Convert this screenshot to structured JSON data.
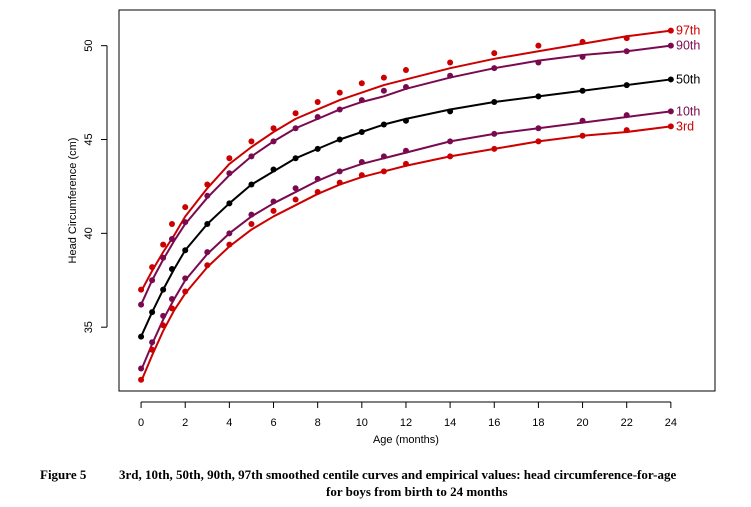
{
  "chart_data": {
    "type": "line",
    "title": "",
    "xlabel": "Age (months)",
    "ylabel": "Head Circumference (cm)",
    "xlim": [
      -1,
      26
    ],
    "ylim": [
      31.6,
      51.9
    ],
    "xticks": [
      0,
      2,
      4,
      6,
      8,
      10,
      12,
      14,
      16,
      18,
      20,
      22,
      24
    ],
    "yticks": [
      35,
      40,
      45,
      50
    ],
    "grid": false,
    "series": [
      {
        "name": "97th",
        "color": "#cc0000",
        "curve_x": [
          0,
          0.5,
          1,
          1.5,
          2,
          3,
          4,
          5,
          6,
          7,
          8,
          9,
          10,
          11,
          12,
          14,
          16,
          18,
          20,
          22,
          24
        ],
        "curve_y": [
          36.9,
          38.0,
          39.0,
          39.9,
          40.9,
          42.4,
          43.7,
          44.6,
          45.4,
          46.1,
          46.6,
          47.1,
          47.5,
          47.9,
          48.2,
          48.8,
          49.3,
          49.7,
          50.1,
          50.5,
          50.8
        ],
        "points_x": [
          0,
          0.5,
          1,
          1.4,
          2,
          3,
          4,
          5,
          6,
          7,
          8,
          9,
          10,
          11,
          12,
          14,
          16,
          18,
          20,
          22,
          24
        ],
        "points_y": [
          37.0,
          38.2,
          39.4,
          40.5,
          41.4,
          42.6,
          44.0,
          44.9,
          45.6,
          46.4,
          47.0,
          47.5,
          48.0,
          48.3,
          48.7,
          49.1,
          49.6,
          50.0,
          50.2,
          50.4,
          50.8
        ]
      },
      {
        "name": "90th",
        "color": "#7a0a50",
        "curve_x": [
          0,
          0.5,
          1,
          1.5,
          2,
          3,
          4,
          5,
          6,
          7,
          8,
          9,
          10,
          11,
          12,
          14,
          16,
          18,
          20,
          22,
          24
        ],
        "curve_y": [
          36.2,
          37.5,
          38.6,
          39.6,
          40.5,
          41.9,
          43.1,
          44.1,
          44.9,
          45.6,
          46.1,
          46.6,
          47.0,
          47.3,
          47.7,
          48.3,
          48.8,
          49.2,
          49.5,
          49.7,
          50.0
        ],
        "points_x": [
          0,
          0.5,
          1,
          1.4,
          2,
          3,
          4,
          5,
          6,
          7,
          8,
          9,
          10,
          11,
          12,
          14,
          16,
          18,
          20,
          22,
          24
        ],
        "points_y": [
          36.2,
          37.5,
          38.7,
          39.7,
          40.6,
          42.0,
          43.2,
          44.1,
          44.9,
          45.6,
          46.2,
          46.6,
          47.1,
          47.6,
          47.8,
          48.4,
          48.8,
          49.1,
          49.4,
          49.7,
          50.0
        ]
      },
      {
        "name": "50th",
        "color": "#000000",
        "curve_x": [
          0,
          0.5,
          1,
          1.5,
          2,
          3,
          4,
          5,
          6,
          7,
          8,
          9,
          10,
          11,
          12,
          14,
          16,
          18,
          20,
          22,
          24
        ],
        "curve_y": [
          34.5,
          35.8,
          37.0,
          38.1,
          39.1,
          40.5,
          41.6,
          42.6,
          43.3,
          44.0,
          44.5,
          45.0,
          45.4,
          45.8,
          46.1,
          46.6,
          47.0,
          47.3,
          47.6,
          47.9,
          48.2
        ],
        "points_x": [
          0,
          0.5,
          1,
          1.4,
          2,
          3,
          4,
          5,
          6,
          7,
          8,
          9,
          10,
          11,
          12,
          14,
          16,
          18,
          20,
          22,
          24
        ],
        "points_y": [
          34.5,
          35.8,
          37.0,
          38.1,
          39.1,
          40.5,
          41.6,
          42.6,
          43.4,
          44.0,
          44.5,
          45.0,
          45.4,
          45.8,
          46.0,
          46.5,
          47.0,
          47.3,
          47.6,
          47.9,
          48.2
        ]
      },
      {
        "name": "10th",
        "color": "#7a0a50",
        "curve_x": [
          0,
          0.5,
          1,
          1.5,
          2,
          3,
          4,
          5,
          6,
          7,
          8,
          9,
          10,
          11,
          12,
          14,
          16,
          18,
          20,
          22,
          24
        ],
        "curve_y": [
          32.7,
          34.1,
          35.4,
          36.5,
          37.5,
          38.9,
          40.0,
          40.9,
          41.6,
          42.2,
          42.8,
          43.3,
          43.7,
          44.0,
          44.3,
          44.9,
          45.3,
          45.6,
          45.9,
          46.2,
          46.5
        ],
        "points_x": [
          0,
          0.5,
          1,
          1.4,
          2,
          3,
          4,
          5,
          6,
          7,
          8,
          9,
          10,
          11,
          12,
          14,
          16,
          18,
          20,
          22,
          24
        ],
        "points_y": [
          32.8,
          34.2,
          35.6,
          36.5,
          37.6,
          39.0,
          40.0,
          41.0,
          41.7,
          42.4,
          42.9,
          43.3,
          43.8,
          44.1,
          44.4,
          44.9,
          45.3,
          45.6,
          46.0,
          46.3,
          46.5
        ]
      },
      {
        "name": "3rd",
        "color": "#cc0000",
        "curve_x": [
          0,
          0.5,
          1,
          1.5,
          2,
          3,
          4,
          5,
          6,
          7,
          8,
          9,
          10,
          11,
          12,
          14,
          16,
          18,
          20,
          22,
          24
        ],
        "curve_y": [
          32.1,
          33.5,
          34.8,
          35.9,
          36.8,
          38.2,
          39.3,
          40.2,
          40.9,
          41.5,
          42.1,
          42.6,
          43.0,
          43.3,
          43.6,
          44.1,
          44.5,
          44.9,
          45.2,
          45.4,
          45.7
        ],
        "points_x": [
          0,
          0.5,
          1,
          1.4,
          2,
          3,
          4,
          5,
          6,
          7,
          8,
          9,
          10,
          11,
          12,
          14,
          16,
          18,
          20,
          22,
          24
        ],
        "points_y": [
          32.2,
          33.8,
          35.1,
          36.0,
          36.9,
          38.3,
          39.4,
          40.5,
          41.2,
          41.8,
          42.2,
          42.7,
          43.1,
          43.3,
          43.7,
          44.1,
          44.5,
          44.9,
          45.2,
          45.5,
          45.7
        ]
      }
    ]
  },
  "caption": {
    "label": "Figure 5",
    "line1": "3rd, 10th, 50th, 90th, 97th smoothed centile curves and empirical values: head circumference-for-age",
    "line2": "for boys from birth to 24 months"
  }
}
